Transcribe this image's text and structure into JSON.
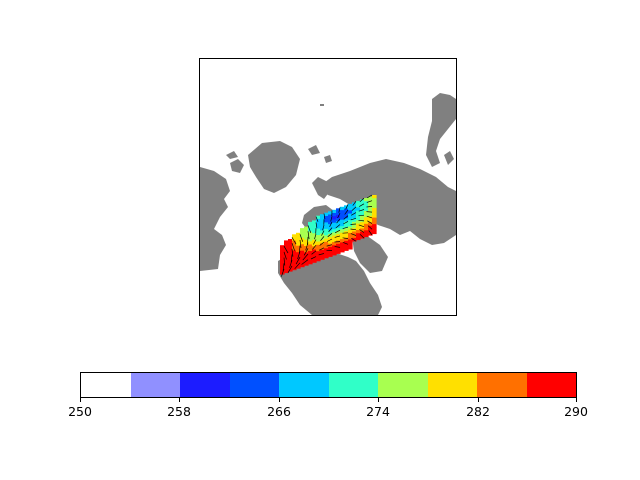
{
  "map": {
    "projection": "polar stereographic",
    "land_color": "#808080",
    "ocean_color": "#ffffff",
    "field": "temperature anomaly filled contours with wind vectors",
    "arrows": true
  },
  "colorbar": {
    "bins": [
      {
        "color": "#ffffff"
      },
      {
        "color": "#9090ff"
      },
      {
        "color": "#1c1cff"
      },
      {
        "color": "#0050ff"
      },
      {
        "color": "#00c8ff"
      },
      {
        "color": "#30ffc8"
      },
      {
        "color": "#a8ff50"
      },
      {
        "color": "#ffe000"
      },
      {
        "color": "#ff7000"
      },
      {
        "color": "#ff0000"
      }
    ],
    "min": 250,
    "max": 290,
    "ticks": [
      "250",
      "258",
      "266",
      "274",
      "282",
      "290"
    ]
  }
}
